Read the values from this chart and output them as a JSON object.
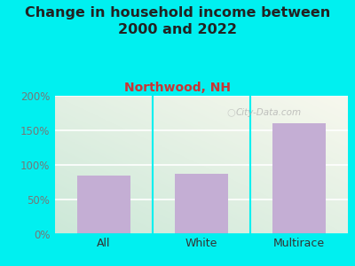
{
  "title": "Change in household income between\n2000 and 2022",
  "subtitle": "Northwood, NH",
  "categories": [
    "All",
    "White",
    "Multirace"
  ],
  "values": [
    85,
    87,
    160
  ],
  "bar_color": "#c4aed4",
  "title_fontsize": 11.5,
  "subtitle_fontsize": 10,
  "subtitle_color": "#cc3333",
  "tick_label_color": "#888888",
  "ytick_label_color": "#777777",
  "background_outer": "#00f0f0",
  "background_inner_top_right": "#f8f8ee",
  "background_inner_bottom_left": "#cce8d8",
  "ylim": [
    0,
    200
  ],
  "yticks": [
    0,
    50,
    100,
    150,
    200
  ],
  "watermark": "City-Data.com"
}
